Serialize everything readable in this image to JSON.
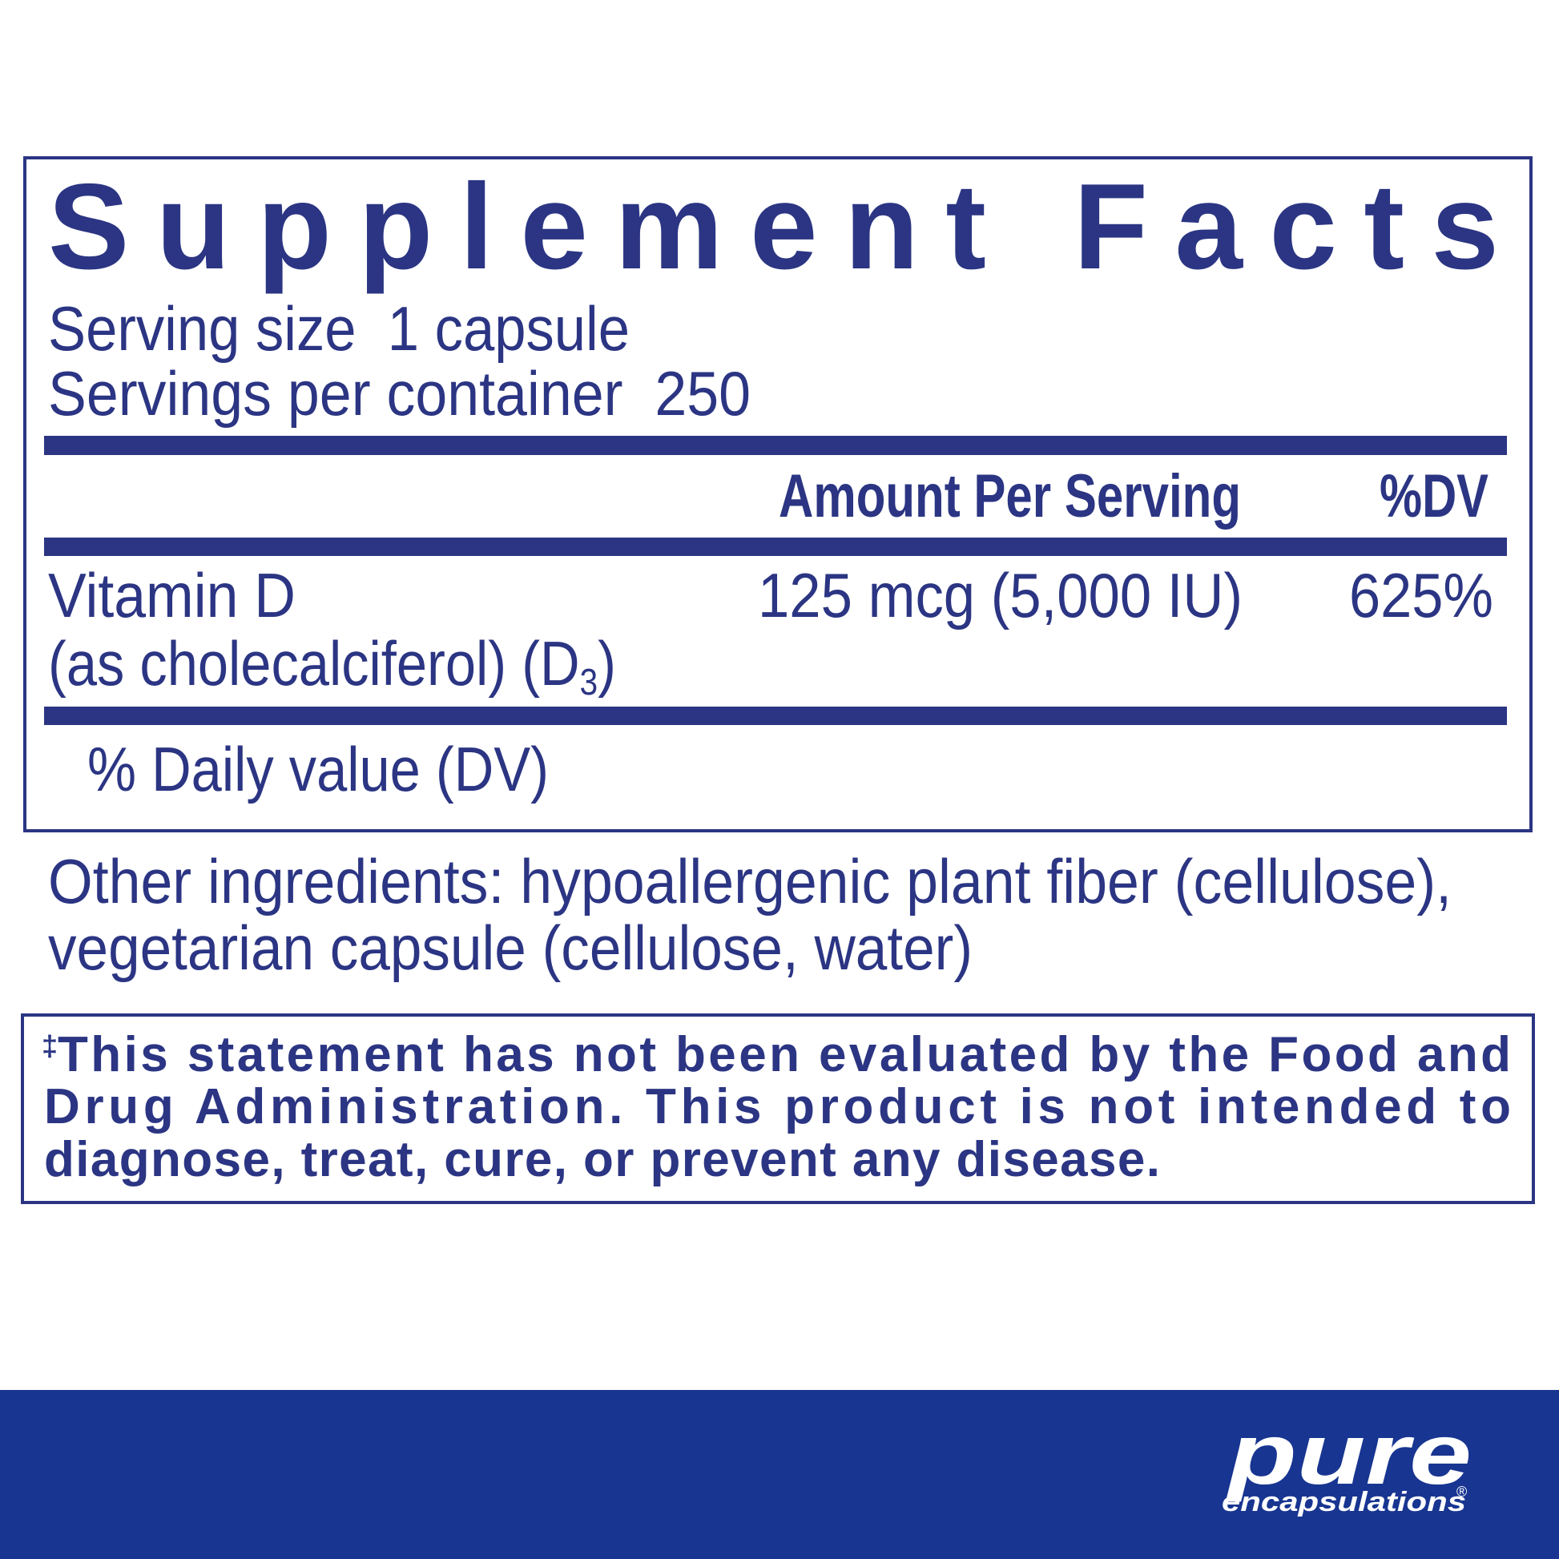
{
  "colors": {
    "ink": "#2b3583",
    "footer": "#183591",
    "background": "#ffffff",
    "logo": "#ffffff"
  },
  "label": {
    "title": "Supplement Facts",
    "serving_size": "Serving size  1 capsule",
    "servings_per_container": "Servings per container  250",
    "header": {
      "amount": "Amount Per Serving",
      "dv": "%DV"
    },
    "rows": [
      {
        "name": "Vitamin D",
        "source_prefix": "(as cholecalciferol) (D",
        "source_sub": "3",
        "source_suffix": ")",
        "amount": "125 mcg (5,000 IU)",
        "dv": "625%"
      }
    ],
    "footnote": "% Daily value (DV)"
  },
  "other_ingredients": {
    "line1": "Other ingredients: hypoallergenic plant fiber (cellulose),",
    "line2": "vegetarian capsule (cellulose, water)"
  },
  "disclaimer": {
    "mark": "‡",
    "line1": "This statement has not been evaluated by the Food and",
    "line2": "Drug Administration. This product is not intended to",
    "line3": "diagnose, treat, cure, or prevent any disease."
  },
  "logo": {
    "word": "pure",
    "sub": "encapsulations",
    "reg": "®"
  }
}
